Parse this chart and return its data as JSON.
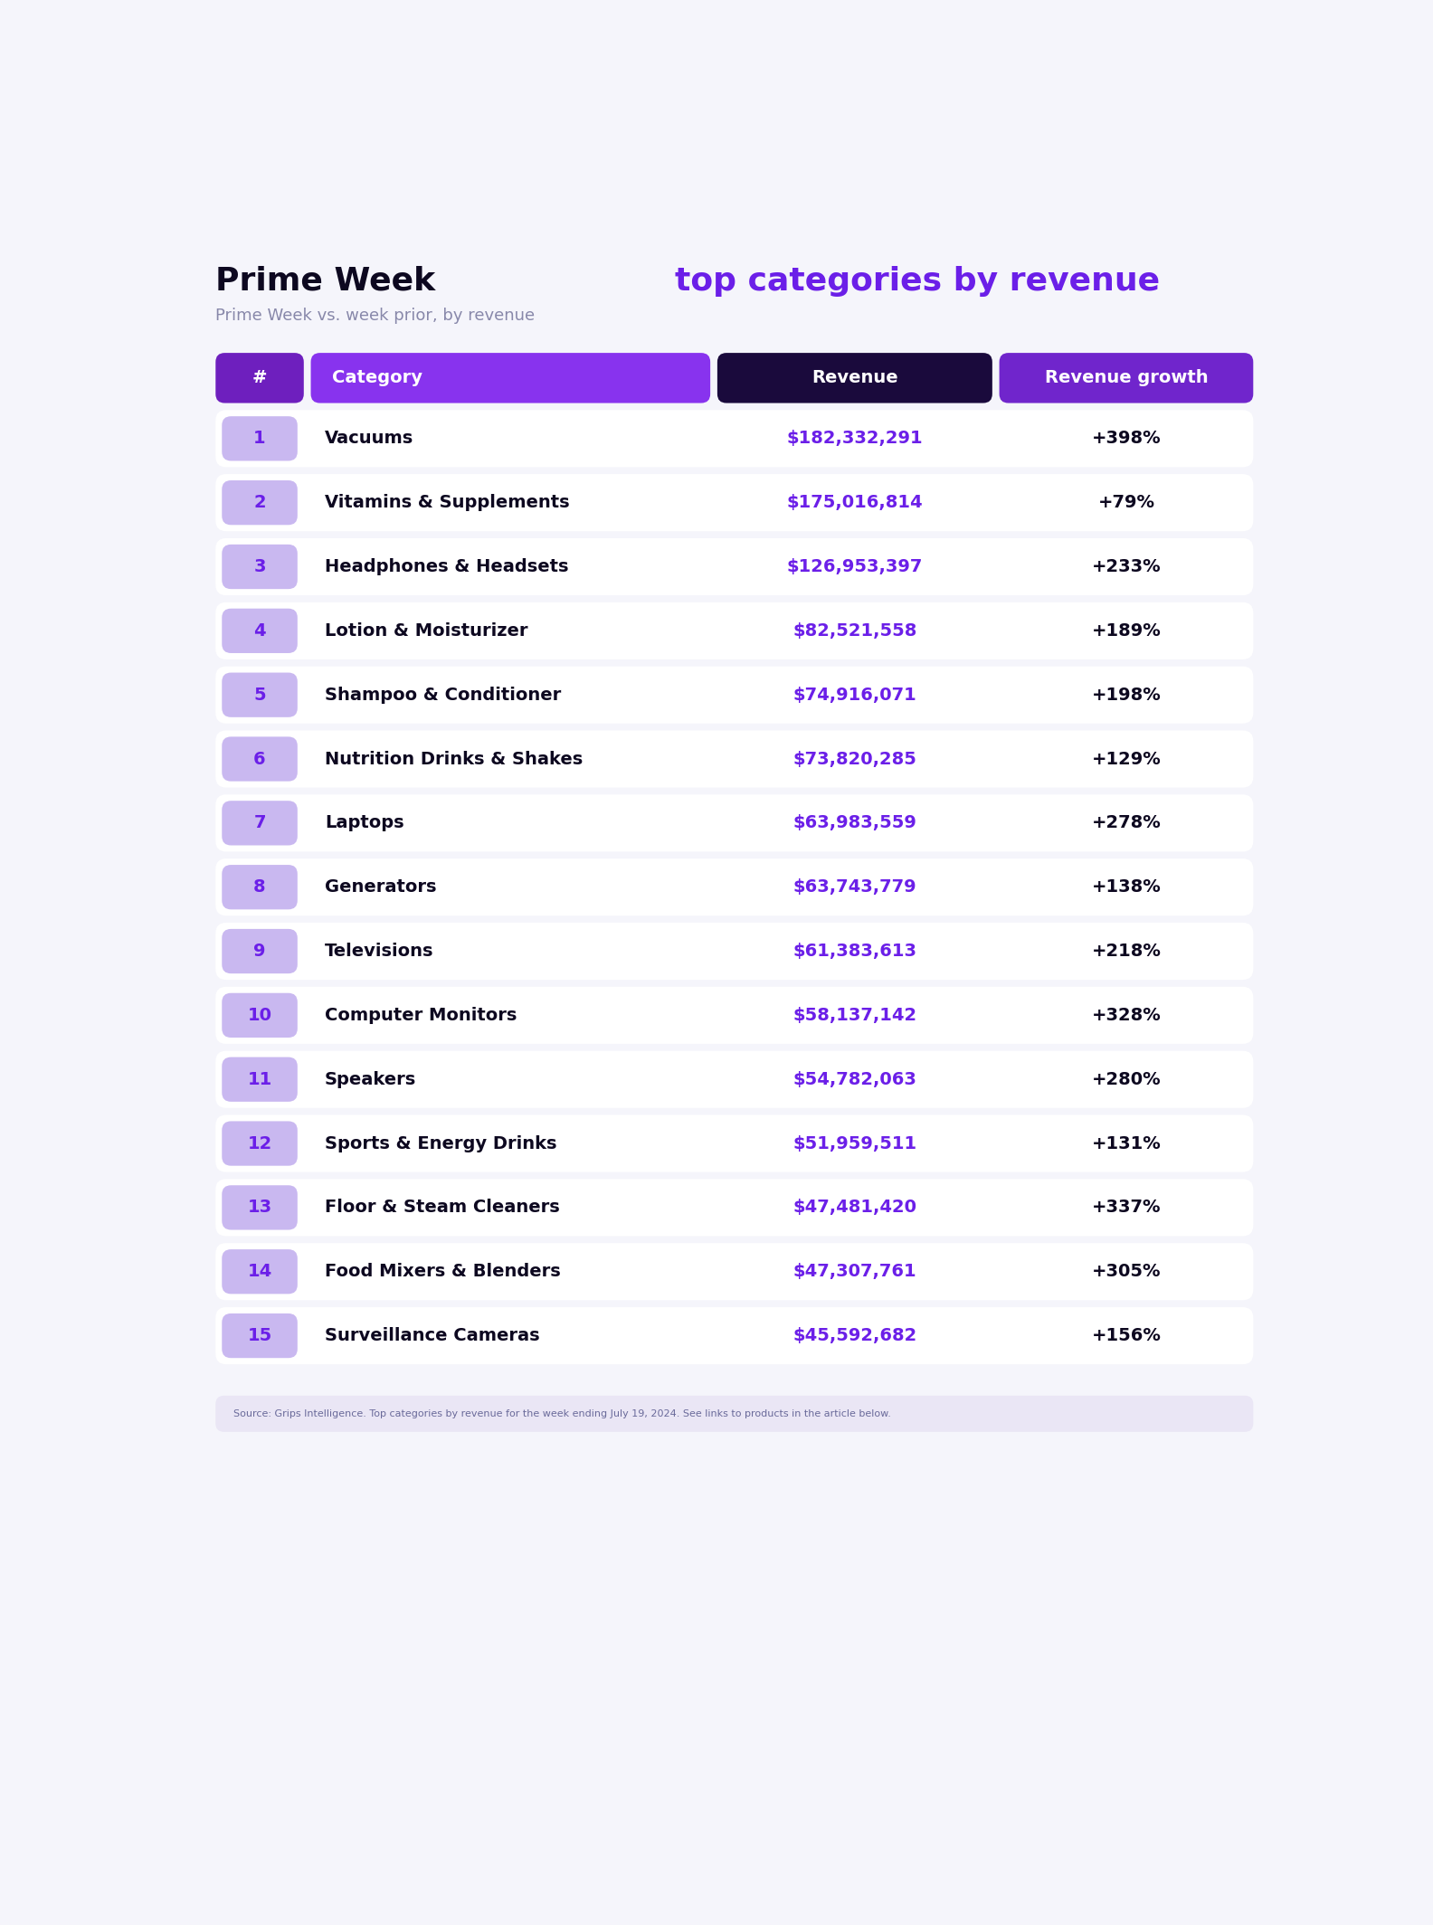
{
  "title_black": "Prime Week ",
  "title_purple": "top categories by revenue",
  "subtitle": "Prime Week vs. week prior, by revenue",
  "rows": [
    {
      "rank": 1,
      "category": "Vacuums",
      "revenue": "$182,332,291",
      "growth": "+398%"
    },
    {
      "rank": 2,
      "category": "Vitamins & Supplements",
      "revenue": "$175,016,814",
      "growth": "+79%"
    },
    {
      "rank": 3,
      "category": "Headphones & Headsets",
      "revenue": "$126,953,397",
      "growth": "+233%"
    },
    {
      "rank": 4,
      "category": "Lotion & Moisturizer",
      "revenue": "$82,521,558",
      "growth": "+189%"
    },
    {
      "rank": 5,
      "category": "Shampoo & Conditioner",
      "revenue": "$74,916,071",
      "growth": "+198%"
    },
    {
      "rank": 6,
      "category": "Nutrition Drinks & Shakes",
      "revenue": "$73,820,285",
      "growth": "+129%"
    },
    {
      "rank": 7,
      "category": "Laptops",
      "revenue": "$63,983,559",
      "growth": "+278%"
    },
    {
      "rank": 8,
      "category": "Generators",
      "revenue": "$63,743,779",
      "growth": "+138%"
    },
    {
      "rank": 9,
      "category": "Televisions",
      "revenue": "$61,383,613",
      "growth": "+218%"
    },
    {
      "rank": 10,
      "category": "Computer Monitors",
      "revenue": "$58,137,142",
      "growth": "+328%"
    },
    {
      "rank": 11,
      "category": "Speakers",
      "revenue": "$54,782,063",
      "growth": "+280%"
    },
    {
      "rank": 12,
      "category": "Sports & Energy Drinks",
      "revenue": "$51,959,511",
      "growth": "+131%"
    },
    {
      "rank": 13,
      "category": "Floor & Steam Cleaners",
      "revenue": "$47,481,420",
      "growth": "+337%"
    },
    {
      "rank": 14,
      "category": "Food Mixers & Blenders",
      "revenue": "$47,307,761",
      "growth": "+305%"
    },
    {
      "rank": 15,
      "category": "Surveillance Cameras",
      "revenue": "$45,592,682",
      "growth": "+156%"
    }
  ],
  "source_text": "Source: Grips Intelligence. Top categories by revenue for the week ending July 19, 2024. See links to products in the article below.",
  "bg_color": "#f5f5fb",
  "card_bg": "#ffffff",
  "header_rank_bg": "#6e1fbe",
  "header_cat_bg": "#8833ee",
  "header_rev_bg": "#1a0a3c",
  "header_grow_bg": "#7025cc",
  "rank_bg_light": "#c9b8f0",
  "purple_text": "#6b1fe8",
  "dark_text": "#0d0820",
  "gray_text": "#8888aa",
  "source_bg": "#eae6f5",
  "source_text_color": "#6a6a9a",
  "title_fontsize": 26,
  "subtitle_fontsize": 13,
  "header_fontsize": 12,
  "row_fontsize": 12,
  "rank_fontsize": 14
}
